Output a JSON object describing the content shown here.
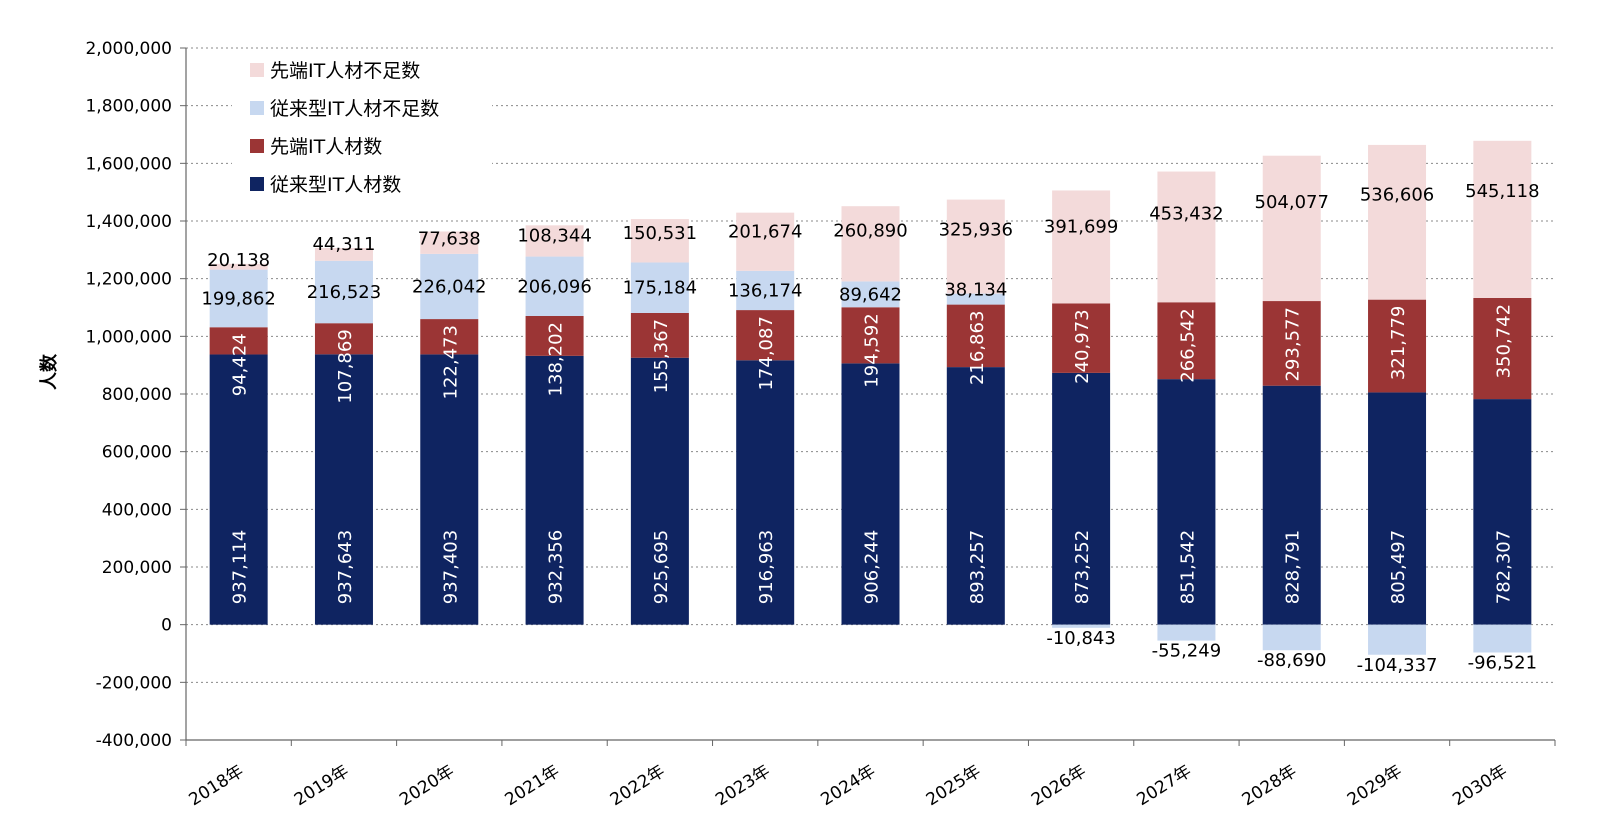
{
  "chart_data": {
    "type": "bar",
    "stacked": true,
    "ylabel": "人数",
    "ylim": [
      -400000,
      2000000
    ],
    "yticks": [
      -400000,
      -200000,
      0,
      200000,
      400000,
      600000,
      800000,
      1000000,
      1200000,
      1400000,
      1600000,
      1800000,
      2000000
    ],
    "ytick_labels": [
      "-400,000",
      "-200,000",
      "0",
      "200,000",
      "400,000",
      "600,000",
      "800,000",
      "1,000,000",
      "1,200,000",
      "1,400,000",
      "1,600,000",
      "1,800,000",
      "2,000,000"
    ],
    "grid": "horizontal dotted",
    "legend_position": "top-left",
    "categories": [
      "2018年",
      "2019年",
      "2020年",
      "2021年",
      "2022年",
      "2023年",
      "2024年",
      "2025年",
      "2026年",
      "2027年",
      "2028年",
      "2029年",
      "2030年"
    ],
    "series": [
      {
        "name": "従来型IT人材数",
        "color": "#0f2461",
        "values": [
          937114,
          937643,
          937403,
          932356,
          925695,
          916963,
          906244,
          893257,
          873252,
          851542,
          828791,
          805497,
          782307
        ],
        "labels": [
          "937,114",
          "937,643",
          "937,403",
          "932,356",
          "925,695",
          "916,963",
          "906,244",
          "893,257",
          "873,252",
          "851,542",
          "828,791",
          "805,497",
          "782,307"
        ]
      },
      {
        "name": "先端IT人材数",
        "color": "#9b3535",
        "values": [
          94424,
          107869,
          122473,
          138202,
          155367,
          174087,
          194592,
          216863,
          240973,
          266542,
          293577,
          321779,
          350742
        ],
        "labels": [
          "94,424",
          "107,869",
          "122,473",
          "138,202",
          "155,367",
          "174,087",
          "194,592",
          "216,863",
          "240,973",
          "266,542",
          "293,577",
          "321,779",
          "350,742"
        ]
      },
      {
        "name": "従来型IT人材不足数",
        "color": "#c7d8f0",
        "values": [
          199862,
          216523,
          226042,
          206096,
          175184,
          136174,
          89642,
          38134,
          -10843,
          -55249,
          -88690,
          -104337,
          -96521
        ],
        "labels": [
          "199,862",
          "216,523",
          "226,042",
          "206,096",
          "175,184",
          "136,174",
          "89,642",
          "38,134",
          "-10,843",
          "-55,249",
          "-88,690",
          "-104,337",
          "-96,521"
        ]
      },
      {
        "name": "先端IT人材不足数",
        "color": "#f3dada",
        "values": [
          20138,
          44311,
          77638,
          108344,
          150531,
          201674,
          260890,
          325936,
          391699,
          453432,
          504077,
          536606,
          545118
        ],
        "labels": [
          "20,138",
          "44,311",
          "77,638",
          "108,344",
          "150,531",
          "201,674",
          "260,890",
          "325,936",
          "391,699",
          "453,432",
          "504,077",
          "536,606",
          "545,118"
        ]
      }
    ],
    "legend_order": [
      3,
      2,
      1,
      0
    ]
  }
}
